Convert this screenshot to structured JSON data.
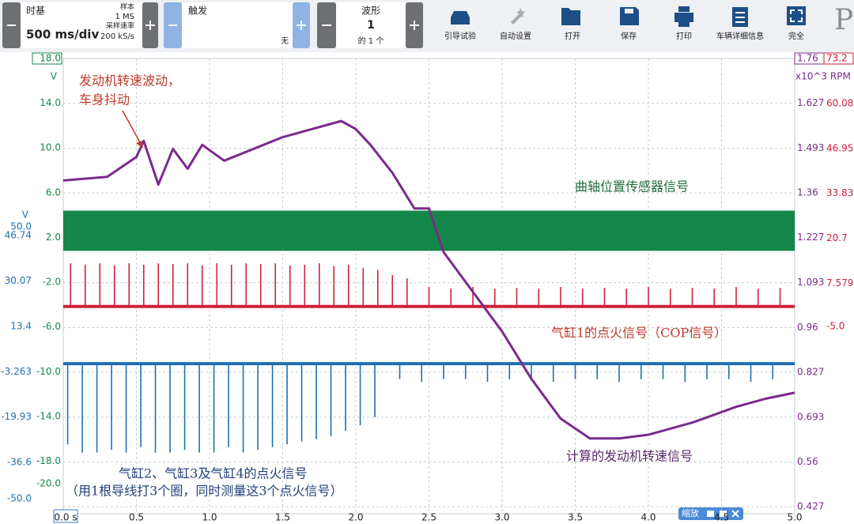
{
  "toolbar": {
    "timebase": {
      "label": "时基",
      "value": "500 ms/div",
      "samples_label": "样本",
      "samples": "1 MS",
      "rate_label": "采样速率",
      "rate": "200 kS/s"
    },
    "trigger": {
      "label": "触发",
      "value": "无"
    },
    "waveform": {
      "label": "波形",
      "value": 1,
      "of": "的 1 个"
    },
    "buttons": [
      "引导试验",
      "自动设置",
      "打开",
      "保存",
      "打印",
      "车辆详细信息",
      "完全"
    ],
    "logo": "P",
    "zoom": "缩放"
  },
  "chart_data": {
    "type": "scope",
    "xlim": [
      0,
      5
    ],
    "xticks": [
      {
        "value": 0,
        "label": "0.0 s"
      },
      0.5,
      {
        "value": 1,
        "label": "1.0"
      },
      1.5,
      {
        "value": 2,
        "label": "2.0"
      },
      2.5,
      {
        "value": 3,
        "label": "3.0"
      },
      3.5,
      {
        "value": 4,
        "label": "4.0"
      },
      4.5,
      {
        "value": 5,
        "label": "5.0"
      }
    ],
    "channels": [
      {
        "type": "band",
        "unit": "V",
        "color": "#13874a",
        "ylim": [
          -22.7,
          18.0
        ],
        "yticks": [
          {
            "value": 18,
            "label": "18.0"
          },
          {
            "value": 14,
            "label": "14.0"
          },
          {
            "value": 10,
            "label": "10.0"
          },
          {
            "value": 6,
            "label": "6.0"
          },
          {
            "value": 2,
            "label": "2.0"
          },
          {
            "value": -2,
            "label": "-2.0"
          },
          {
            "value": -6,
            "label": "-6.0"
          },
          {
            "value": -10,
            "label": "-10.0"
          },
          {
            "value": -14,
            "label": "-14.0"
          },
          {
            "value": -18,
            "label": "-18.0"
          },
          {
            "value": -20,
            "label": "-20.0"
          }
        ],
        "x": [
          0,
          5
        ],
        "upper": [
          4.4,
          4.4
        ],
        "lower": [
          0.8,
          0.8
        ]
      },
      {
        "type": "pulse",
        "unit": "V",
        "color": "#1f6fb0",
        "ylim": [
          -55.5,
          111.9
        ],
        "yticks": [
          {
            "value": 50,
            "label": "50.0"
          },
          46.74,
          30.07,
          13.4,
          -3.263,
          -19.93,
          -36.6,
          {
            "value": -50,
            "label": "-50.0"
          }
        ],
        "baseline": -0.3,
        "x": [
          0.03,
          0.13,
          0.23,
          0.33,
          0.43,
          0.53,
          0.63,
          0.73,
          0.83,
          0.93,
          1.03,
          1.13,
          1.23,
          1.33,
          1.43,
          1.53,
          1.63,
          1.73,
          1.83,
          1.93,
          2.03,
          2.13,
          2.3,
          2.45,
          2.6,
          2.75,
          2.9,
          3.05,
          3.2,
          3.35,
          3.5,
          3.65,
          3.8,
          3.95,
          4.1,
          4.25,
          4.4,
          4.55,
          4.7,
          4.85
        ],
        "values": [
          -30,
          -33,
          -33,
          -32,
          -33,
          -31,
          -33,
          -33,
          -32,
          -33,
          -33,
          -31,
          -33,
          -32,
          -31,
          -30,
          -29,
          -28,
          -27,
          -25,
          -23,
          -20,
          -6,
          -7,
          -6,
          -6,
          -7,
          -6,
          -6,
          -7,
          -6,
          -6,
          -7,
          -6,
          -6,
          -7,
          -6,
          -6,
          -7,
          -6
        ]
      },
      {
        "type": "line",
        "unit": "x10^3 RPM",
        "color": "#7b2a8c",
        "grid": true,
        "ylim": [
          0.406,
          1.76
        ],
        "yticks": [
          1.76,
          1.627,
          1.493,
          1.36,
          1.227,
          1.093,
          0.96,
          0.827,
          0.693,
          0.56,
          0.427
        ],
        "x": [
          0,
          0.3,
          0.5,
          0.55,
          0.65,
          0.75,
          0.85,
          0.95,
          1.1,
          1.3,
          1.5,
          1.7,
          1.9,
          2.0,
          2.1,
          2.25,
          2.4,
          2.5,
          2.6,
          2.8,
          3.0,
          3.2,
          3.4,
          3.6,
          3.8,
          4.0,
          4.3,
          4.6,
          4.8,
          5.0
        ],
        "values": [
          1.397,
          1.408,
          1.467,
          1.515,
          1.385,
          1.491,
          1.432,
          1.503,
          1.456,
          1.491,
          1.526,
          1.55,
          1.574,
          1.55,
          1.503,
          1.42,
          1.314,
          1.314,
          1.184,
          1.066,
          0.948,
          0.807,
          0.689,
          0.63,
          0.63,
          0.641,
          0.677,
          0.724,
          0.748,
          0.766
        ]
      },
      {
        "type": "pulse",
        "color": "#d0213a",
        "ylim": [
          -59.7,
          73.2
        ],
        "yticks": [
          73.2,
          60.08,
          46.95,
          33.83,
          20.7,
          7.579,
          {
            "value": -5,
            "label": "-5.0"
          }
        ],
        "baseline": 0.8,
        "x": [
          0.05,
          0.15,
          0.25,
          0.35,
          0.45,
          0.55,
          0.65,
          0.75,
          0.85,
          0.95,
          1.05,
          1.15,
          1.25,
          1.35,
          1.45,
          1.55,
          1.65,
          1.75,
          1.85,
          1.95,
          2.05,
          2.15,
          2.25,
          2.35,
          2.5,
          2.65,
          2.8,
          2.95,
          3.1,
          3.25,
          3.4,
          3.55,
          3.7,
          3.85,
          4.0,
          4.15,
          4.3,
          4.45,
          4.6,
          4.75,
          4.9
        ],
        "values": [
          13.4,
          13.0,
          13.4,
          12.8,
          13.4,
          13.0,
          13.4,
          13.2,
          13.4,
          12.8,
          13.4,
          13.0,
          13.4,
          13.2,
          13.4,
          12.8,
          13.0,
          13.4,
          12.6,
          13.0,
          12.0,
          11.5,
          10.0,
          9.0,
          6.5,
          6.0,
          6.5,
          6.0,
          6.2,
          6.0,
          6.5,
          6.0,
          6.2,
          6.0,
          6.5,
          6.0,
          6.2,
          6.0,
          6.5,
          6.0,
          6.2
        ]
      }
    ],
    "annotations": [
      "发动机转速波动，",
      "车身抖动",
      "曲轴位置传感器信号",
      "气缸1的点火信号（COP信号）",
      "计算的发动机转速信号",
      "气缸2、气缸3及气缸4的点火信号",
      "（用1根导线打3个圈，同时测量这3个点火信号）"
    ]
  }
}
